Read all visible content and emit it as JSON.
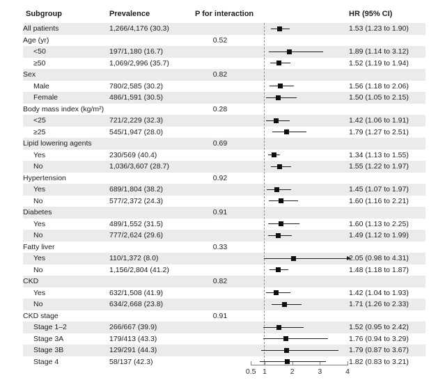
{
  "header": {
    "subgroup": "Subgroup",
    "prevalence": "Prevalence",
    "p_interaction": "P for interaction",
    "hr": "HR (95% CI)"
  },
  "colors": {
    "stripe": "#e9ebec",
    "text": "#1c1c1c",
    "axis": "#7f7f7f",
    "marker": "#0d0d0d"
  },
  "chart_data": {
    "type": "scatter",
    "variant": "forest-plot",
    "title": "",
    "xlabel": "",
    "x_axis": {
      "scale": "linear",
      "min": 0.5,
      "max": 4,
      "ticks": [
        0.5,
        1,
        2,
        3,
        4
      ],
      "tick_labels": [
        "0.5",
        "1",
        "2",
        "3",
        "4"
      ],
      "reference_line": 1
    },
    "columns": [
      "Subgroup",
      "Prevalence",
      "P for interaction",
      "HR (95% CI)"
    ],
    "rows": [
      {
        "label": "All patients",
        "indent": false,
        "prevalence": "1,266/4,176 (30.3)",
        "p": "",
        "hr": 1.53,
        "ci_low": 1.23,
        "ci_high": 1.9,
        "hr_text": "1.53 (1.23 to 1.90)",
        "arrow": false
      },
      {
        "label": "Age (yr)",
        "indent": false,
        "prevalence": "",
        "p": "0.52",
        "hr": null,
        "ci_low": null,
        "ci_high": null,
        "hr_text": "",
        "arrow": false
      },
      {
        "label": "<50",
        "indent": true,
        "prevalence": "197/1,180 (16.7)",
        "p": "",
        "hr": 1.89,
        "ci_low": 1.14,
        "ci_high": 3.12,
        "hr_text": "1.89 (1.14 to 3.12)",
        "arrow": false
      },
      {
        "label": "≥50",
        "indent": true,
        "prevalence": "1,069/2,996 (35.7)",
        "p": "",
        "hr": 1.52,
        "ci_low": 1.19,
        "ci_high": 1.94,
        "hr_text": "1.52 (1.19 to 1.94)",
        "arrow": false
      },
      {
        "label": "Sex",
        "indent": false,
        "prevalence": "",
        "p": "0.82",
        "hr": null,
        "ci_low": null,
        "ci_high": null,
        "hr_text": "",
        "arrow": false
      },
      {
        "label": "Male",
        "indent": true,
        "prevalence": "780/2,585 (30.2)",
        "p": "",
        "hr": 1.56,
        "ci_low": 1.18,
        "ci_high": 2.06,
        "hr_text": "1.56 (1.18 to 2.06)",
        "arrow": false
      },
      {
        "label": "Female",
        "indent": true,
        "prevalence": "486/1,591 (30.5)",
        "p": "",
        "hr": 1.5,
        "ci_low": 1.05,
        "ci_high": 2.15,
        "hr_text": "1.50 (1.05 to 2.15)",
        "arrow": false
      },
      {
        "label": "Body mass index (kg/m²)",
        "indent": false,
        "prevalence": "",
        "p": "0.28",
        "hr": null,
        "ci_low": null,
        "ci_high": null,
        "hr_text": "",
        "arrow": false
      },
      {
        "label": "<25",
        "indent": true,
        "prevalence": "721/2,229 (32.3)",
        "p": "",
        "hr": 1.42,
        "ci_low": 1.06,
        "ci_high": 1.91,
        "hr_text": "1.42 (1.06 to 1.91)",
        "arrow": false
      },
      {
        "label": "≥25",
        "indent": true,
        "prevalence": "545/1,947 (28.0)",
        "p": "",
        "hr": 1.79,
        "ci_low": 1.27,
        "ci_high": 2.51,
        "hr_text": "1.79 (1.27 to 2.51)",
        "arrow": false
      },
      {
        "label": "Lipid lowering agents",
        "indent": false,
        "prevalence": "",
        "p": "0.69",
        "hr": null,
        "ci_low": null,
        "ci_high": null,
        "hr_text": "",
        "arrow": false
      },
      {
        "label": "Yes",
        "indent": true,
        "prevalence": "230/569 (40.4)",
        "p": "",
        "hr": 1.34,
        "ci_low": 1.13,
        "ci_high": 1.55,
        "hr_text": "1.34 (1.13 to 1.55)",
        "arrow": false
      },
      {
        "label": "No",
        "indent": true,
        "prevalence": "1,036/3,607 (28.7)",
        "p": "",
        "hr": 1.55,
        "ci_low": 1.22,
        "ci_high": 1.97,
        "hr_text": "1.55 (1.22 to 1.97)",
        "arrow": false
      },
      {
        "label": "Hypertension",
        "indent": false,
        "prevalence": "",
        "p": "0.92",
        "hr": null,
        "ci_low": null,
        "ci_high": null,
        "hr_text": "",
        "arrow": false
      },
      {
        "label": "Yes",
        "indent": true,
        "prevalence": "689/1,804 (38.2)",
        "p": "",
        "hr": 1.45,
        "ci_low": 1.07,
        "ci_high": 1.97,
        "hr_text": "1.45 (1.07 to 1.97)",
        "arrow": false
      },
      {
        "label": "No",
        "indent": true,
        "prevalence": "577/2,372 (24.3)",
        "p": "",
        "hr": 1.6,
        "ci_low": 1.16,
        "ci_high": 2.21,
        "hr_text": "1.60 (1.16 to 2.21)",
        "arrow": false
      },
      {
        "label": "Diabetes",
        "indent": false,
        "prevalence": "",
        "p": "0.91",
        "hr": null,
        "ci_low": null,
        "ci_high": null,
        "hr_text": "",
        "arrow": false
      },
      {
        "label": "Yes",
        "indent": true,
        "prevalence": "489/1,552 (31.5)",
        "p": "",
        "hr": 1.6,
        "ci_low": 1.13,
        "ci_high": 2.25,
        "hr_text": "1.60 (1.13 to 2.25)",
        "arrow": false
      },
      {
        "label": "No",
        "indent": true,
        "prevalence": "777/2,624 (29.6)",
        "p": "",
        "hr": 1.49,
        "ci_low": 1.12,
        "ci_high": 1.99,
        "hr_text": "1.49 (1.12 to 1.99)",
        "arrow": false
      },
      {
        "label": "Fatty liver",
        "indent": false,
        "prevalence": "",
        "p": "0.33",
        "hr": null,
        "ci_low": null,
        "ci_high": null,
        "hr_text": "",
        "arrow": false
      },
      {
        "label": "Yes",
        "indent": true,
        "prevalence": "110/1,372 (8.0)",
        "p": "",
        "hr": 2.05,
        "ci_low": 0.98,
        "ci_high": 4.31,
        "hr_text": "2.05 (0.98 to 4.31)",
        "arrow": true
      },
      {
        "label": "No",
        "indent": true,
        "prevalence": "1,156/2,804 (41.2)",
        "p": "",
        "hr": 1.48,
        "ci_low": 1.18,
        "ci_high": 1.87,
        "hr_text": "1.48 (1.18 to 1.87)",
        "arrow": false
      },
      {
        "label": "CKD",
        "indent": false,
        "prevalence": "",
        "p": "0.82",
        "hr": null,
        "ci_low": null,
        "ci_high": null,
        "hr_text": "",
        "arrow": false
      },
      {
        "label": "Yes",
        "indent": true,
        "prevalence": "632/1,508 (41.9)",
        "p": "",
        "hr": 1.42,
        "ci_low": 1.04,
        "ci_high": 1.93,
        "hr_text": "1.42 (1.04 to 1.93)",
        "arrow": false
      },
      {
        "label": "No",
        "indent": true,
        "prevalence": "634/2,668 (23.8)",
        "p": "",
        "hr": 1.71,
        "ci_low": 1.26,
        "ci_high": 2.33,
        "hr_text": "1.71 (1.26 to 2.33)",
        "arrow": false
      },
      {
        "label": "CKD stage",
        "indent": false,
        "prevalence": "",
        "p": "0.91",
        "hr": null,
        "ci_low": null,
        "ci_high": null,
        "hr_text": "",
        "arrow": false
      },
      {
        "label": "Stage 1–2",
        "indent": true,
        "prevalence": "266/667 (39.9)",
        "p": "",
        "hr": 1.52,
        "ci_low": 0.95,
        "ci_high": 2.42,
        "hr_text": "1.52 (0.95 to 2.42)",
        "arrow": false
      },
      {
        "label": "Stage 3A",
        "indent": true,
        "prevalence": "179/413 (43.3)",
        "p": "",
        "hr": 1.76,
        "ci_low": 0.94,
        "ci_high": 3.29,
        "hr_text": "1.76 (0.94 to 3.29)",
        "arrow": false
      },
      {
        "label": "Stage 3B",
        "indent": true,
        "prevalence": "129/291 (44.3)",
        "p": "",
        "hr": 1.79,
        "ci_low": 0.87,
        "ci_high": 3.67,
        "hr_text": "1.79 (0.87 to 3.67)",
        "arrow": false
      },
      {
        "label": "Stage 4",
        "indent": true,
        "prevalence": "58/137 (42.3)",
        "p": "",
        "hr": 1.82,
        "ci_low": 0.83,
        "ci_high": 3.21,
        "hr_text": "1.82 (0.83 to 3.21)",
        "arrow": false
      }
    ]
  }
}
